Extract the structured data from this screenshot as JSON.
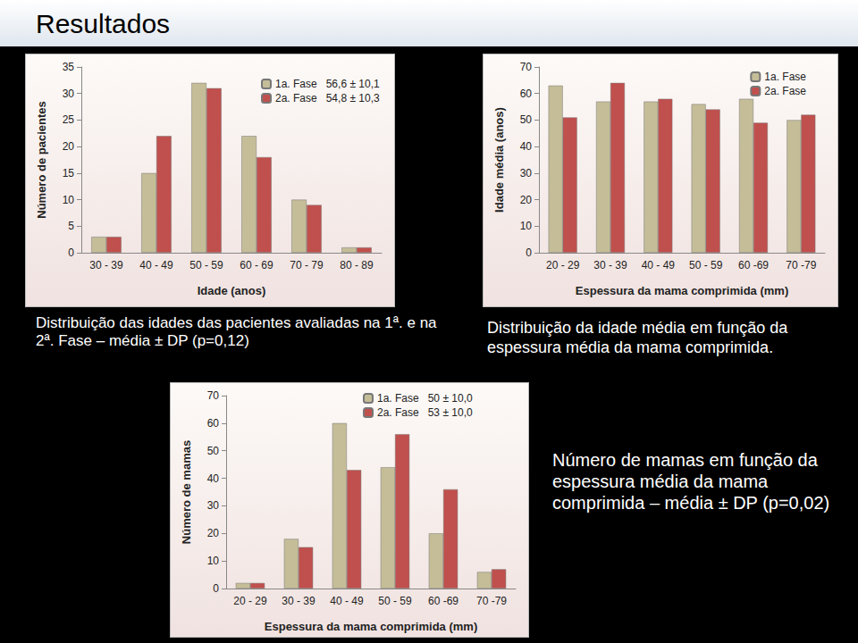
{
  "header": {
    "title": "Resultados"
  },
  "chart_data": [
    {
      "type": "bar",
      "title": "Distribuição das idades das pacientes avaliadas na 1ª. e na 2ª. Fase – média ± DP (p=0,12)",
      "x_label": "Idade (anos)",
      "y_label": "Número de pacientes",
      "categories": [
        "30 - 39",
        "40 - 49",
        "50 - 59",
        "60 - 69",
        "70 - 79",
        "80 - 89"
      ],
      "series": [
        {
          "name": "1a. Fase   56,6 ± 10,1",
          "color": "#c4bd97",
          "values": [
            3,
            15,
            32,
            22,
            10,
            1
          ]
        },
        {
          "name": "2a. Fase   54,8 ± 10,3",
          "color": "#c0504d",
          "values": [
            3,
            22,
            31,
            18,
            9,
            1
          ]
        }
      ],
      "ylim": [
        0,
        35
      ],
      "yticks": [
        0,
        5,
        10,
        15,
        20,
        25,
        30,
        35
      ],
      "grid": false,
      "legend": "top"
    },
    {
      "type": "bar",
      "title": "Distribuição da idade média em função da espessura média da mama comprimida.",
      "x_label": "Espessura da mama comprimida (mm)",
      "y_label": "Idade média (anos)",
      "categories": [
        "20 - 29",
        "30 - 39",
        "40 - 49",
        "50 - 59",
        "60 -69",
        "70 -79"
      ],
      "series": [
        {
          "name": "1a. Fase",
          "color": "#c4bd97",
          "values": [
            63,
            57,
            57,
            56,
            58,
            50
          ]
        },
        {
          "name": "2a. Fase",
          "color": "#c0504d",
          "values": [
            51,
            64,
            58,
            54,
            49,
            52
          ]
        }
      ],
      "ylim": [
        0,
        70
      ],
      "yticks": [
        0,
        10,
        20,
        30,
        40,
        50,
        60,
        70
      ],
      "grid": false,
      "legend": "top right"
    },
    {
      "type": "bar",
      "title": "Número de mamas em função da espessura média da mama comprimida – média ± DP (p=0,02)",
      "x_label": "Espessura da mama comprimida (mm)",
      "y_label": "Número de mamas",
      "categories": [
        "20 - 29",
        "30 - 39",
        "40 - 49",
        "50 - 59",
        "60 -69",
        "70 -79"
      ],
      "series": [
        {
          "name": "1a. Fase   50 ± 10,0",
          "color": "#c4bd97",
          "values": [
            2,
            18,
            60,
            44,
            20,
            6
          ]
        },
        {
          "name": "2a. Fase   53 ± 10,0",
          "color": "#c0504d",
          "values": [
            2,
            15,
            43,
            56,
            36,
            7
          ]
        }
      ],
      "ylim": [
        0,
        70
      ],
      "yticks": [
        0,
        10,
        20,
        30,
        40,
        50,
        60,
        70
      ],
      "grid": false,
      "legend": "top right"
    }
  ]
}
